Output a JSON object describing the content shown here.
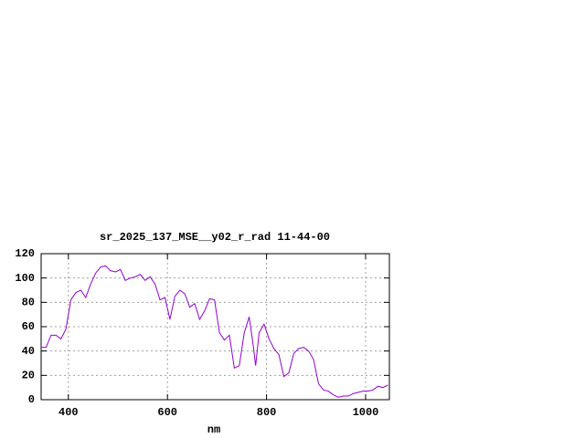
{
  "chart_data": {
    "type": "line",
    "title": "sr_2025_137_MSE__y02_r_rad 11-44-00",
    "x_label": "nm",
    "x": [
      345,
      355,
      365,
      375,
      385,
      395,
      405,
      415,
      425,
      435,
      445,
      455,
      465,
      475,
      485,
      495,
      505,
      515,
      525,
      535,
      545,
      555,
      565,
      575,
      585,
      595,
      605,
      615,
      625,
      635,
      645,
      655,
      665,
      675,
      685,
      695,
      705,
      715,
      725,
      735,
      745,
      755,
      765,
      773,
      778,
      785,
      795,
      805,
      815,
      825,
      835,
      845,
      855,
      865,
      875,
      885,
      895,
      905,
      915,
      925,
      935,
      945,
      955,
      965,
      975,
      985,
      995,
      1005,
      1015,
      1025,
      1035,
      1045
    ],
    "series": [
      {
        "color": "#9400d3",
        "values": [
          43,
          43,
          53,
          53,
          50,
          58,
          82,
          88,
          90,
          84,
          95,
          104,
          109,
          110,
          106,
          105,
          107,
          98,
          100,
          101,
          103,
          98,
          101,
          95,
          82,
          84,
          66,
          85,
          90,
          87,
          76,
          79,
          66,
          73,
          83,
          82,
          55,
          49,
          53,
          26,
          28,
          55,
          68,
          45,
          28,
          55,
          62,
          50,
          42,
          37,
          19,
          22,
          38,
          42,
          43,
          40,
          33,
          13,
          8,
          7,
          4,
          2,
          3,
          3,
          5,
          6,
          7,
          7,
          8,
          11,
          10,
          12
        ]
      }
    ],
    "xlim": [
      345,
      1048
    ],
    "xticks": [
      400,
      600,
      800,
      1000
    ],
    "ylim": [
      0,
      120
    ],
    "yticks": [
      0,
      20,
      40,
      60,
      80,
      100,
      120
    ],
    "grid": true
  }
}
